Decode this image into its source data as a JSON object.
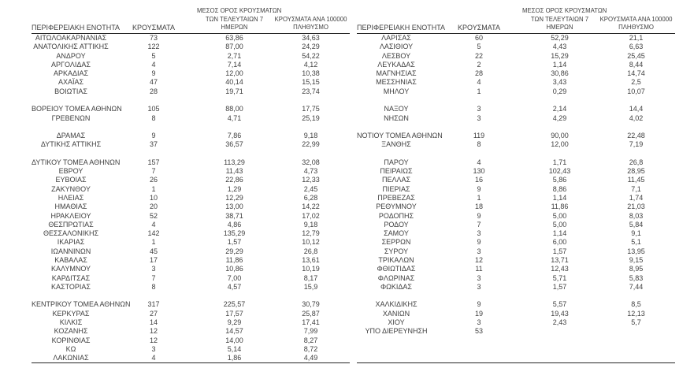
{
  "columns": {
    "region": "ΠΕΡΙΦΕΡΕΙΑΚΗ ΕΝΟΤΗΤΑ",
    "cases": "ΚΡΟΥΣΜΑΤΑ",
    "avg7_lines": [
      "ΜΕΣΟΣ ΟΡΟΣ ΚΡΟΥΣΜΑΤΩΝ",
      "ΤΩΝ ΤΕΛΕΥΤΑΙΩΝ 7",
      "ΗΜΕΡΩΝ"
    ],
    "per100k_lines": [
      "ΚΡΟΥΣΜΑΤΑ ΑΝΑ 100000",
      "ΠΛΗΘΥΣΜΟ"
    ]
  },
  "left_table": {
    "rows": [
      [
        "ΑΙΤΩΛΟΑΚΑΡΝΑΝΙΑΣ",
        "73",
        "63,86",
        "34,63"
      ],
      [
        "ΑΝΑΤΟΛΙΚΗΣ ΑΤΤΙΚΗΣ",
        "122",
        "87,00",
        "24,29"
      ],
      [
        "ΑΝΔΡΟΥ",
        "5",
        "2,71",
        "54,22"
      ],
      [
        "ΑΡΓΟΛΙΔΑΣ",
        "4",
        "7,14",
        "4,12"
      ],
      [
        "ΑΡΚΑΔΙΑΣ",
        "9",
        "12,00",
        "10,38"
      ],
      [
        "ΑΧΑΪΑΣ",
        "47",
        "40,14",
        "15,15"
      ],
      [
        "ΒΟΙΩΤΙΑΣ",
        "28",
        "19,71",
        "23,74"
      ],
      null,
      [
        "ΒΟΡΕΙΟΥ ΤΟΜΕΑ ΑΘΗΝΩΝ",
        "105",
        "88,00",
        "17,75"
      ],
      [
        "ΓΡΕΒΕΝΩΝ",
        "8",
        "4,71",
        "25,19"
      ],
      null,
      [
        "ΔΡΑΜΑΣ",
        "9",
        "7,86",
        "9,18"
      ],
      [
        "ΔΥΤΙΚΗΣ ΑΤΤΙΚΗΣ",
        "37",
        "36,57",
        "22,99"
      ],
      null,
      [
        "ΔΥΤΙΚΟΥ ΤΟΜΕΑ ΑΘΗΝΩΝ",
        "157",
        "113,29",
        "32,08"
      ],
      [
        "ΕΒΡΟΥ",
        "7",
        "11,43",
        "4,73"
      ],
      [
        "ΕΥΒΟΙΑΣ",
        "26",
        "22,86",
        "12,33"
      ],
      [
        "ΖΑΚΥΝΘΟΥ",
        "1",
        "1,29",
        "2,45"
      ],
      [
        "ΗΛΕΙΑΣ",
        "10",
        "12,29",
        "6,28"
      ],
      [
        "ΗΜΑΘΙΑΣ",
        "20",
        "13,00",
        "14,22"
      ],
      [
        "ΗΡΑΚΛΕΙΟΥ",
        "52",
        "38,71",
        "17,02"
      ],
      [
        "ΘΕΣΠΡΩΤΙΑΣ",
        "4",
        "4,86",
        "9,18"
      ],
      [
        "ΘΕΣΣΑΛΟΝΙΚΗΣ",
        "142",
        "135,29",
        "12,79"
      ],
      [
        "ΙΚΑΡΙΑΣ",
        "1",
        "1,57",
        "10,12"
      ],
      [
        "ΙΩΑΝΝΙΝΩΝ",
        "45",
        "29,29",
        "26,8"
      ],
      [
        "ΚΑΒΑΛΑΣ",
        "17",
        "11,86",
        "13,61"
      ],
      [
        "ΚΑΛΥΜΝΟΥ",
        "3",
        "10,86",
        "10,19"
      ],
      [
        "ΚΑΡΔΙΤΣΑΣ",
        "7",
        "7,00",
        "8,17"
      ],
      [
        "ΚΑΣΤΟΡΙΑΣ",
        "8",
        "4,57",
        "15,9"
      ],
      null,
      [
        "ΚΕΝΤΡΙΚΟΥ ΤΟΜΕΑ ΑΘΗΝΩΝ",
        "317",
        "225,57",
        "30,79"
      ],
      [
        "ΚΕΡΚΥΡΑΣ",
        "27",
        "17,57",
        "25,87"
      ],
      [
        "ΚΙΛΚΙΣ",
        "14",
        "9,29",
        "17,41"
      ],
      [
        "ΚΟΖΑΝΗΣ",
        "12",
        "14,57",
        "7,99"
      ],
      [
        "ΚΟΡΙΝΘΙΑΣ",
        "12",
        "14,00",
        "8,27"
      ],
      [
        "ΚΩ",
        "3",
        "5,14",
        "8,72"
      ],
      [
        "ΛΑΚΩΝΙΑΣ",
        "4",
        "1,86",
        "4,49"
      ]
    ]
  },
  "right_table": {
    "rows": [
      [
        "ΛΑΡΙΣΑΣ",
        "60",
        "52,29",
        "21,1"
      ],
      [
        "ΛΑΣΙΘΙΟΥ",
        "5",
        "4,43",
        "6,63"
      ],
      [
        "ΛΕΣΒΟΥ",
        "22",
        "15,29",
        "25,45"
      ],
      [
        "ΛΕΥΚΑΔΑΣ",
        "2",
        "1,14",
        "8,44"
      ],
      [
        "ΜΑΓΝΗΣΙΑΣ",
        "28",
        "30,86",
        "14,74"
      ],
      [
        "ΜΕΣΣΗΝΙΑΣ",
        "4",
        "3,43",
        "2,5"
      ],
      [
        "ΜΗΛΟΥ",
        "1",
        "0,29",
        "10,07"
      ],
      null,
      [
        "ΝΑΞΟΥ",
        "3",
        "2,14",
        "14,4"
      ],
      [
        "ΝΗΣΩΝ",
        "3",
        "4,29",
        "4,02"
      ],
      null,
      [
        "ΝΟΤΙΟΥ ΤΟΜΕΑ ΑΘΗΝΩΝ",
        "119",
        "90,00",
        "22,48"
      ],
      [
        "ΞΑΝΘΗΣ",
        "8",
        "12,00",
        "7,19"
      ],
      null,
      [
        "ΠΑΡΟΥ",
        "4",
        "1,71",
        "26,8"
      ],
      [
        "ΠΕΙΡΑΙΩΣ",
        "130",
        "102,43",
        "28,95"
      ],
      [
        "ΠΕΛΛΑΣ",
        "16",
        "5,86",
        "11,45"
      ],
      [
        "ΠΙΕΡΙΑΣ",
        "9",
        "8,86",
        "7,1"
      ],
      [
        "ΠΡΕΒΕΖΑΣ",
        "1",
        "1,14",
        "1,74"
      ],
      [
        "ΡΕΘΥΜΝΟΥ",
        "18",
        "11,86",
        "21,03"
      ],
      [
        "ΡΟΔΟΠΗΣ",
        "9",
        "5,00",
        "8,03"
      ],
      [
        "ΡΟΔΟΥ",
        "7",
        "5,00",
        "5,84"
      ],
      [
        "ΣΑΜΟΥ",
        "3",
        "1,14",
        "9,1"
      ],
      [
        "ΣΕΡΡΩΝ",
        "9",
        "6,00",
        "5,1"
      ],
      [
        "ΣΥΡΟΥ",
        "3",
        "1,57",
        "13,95"
      ],
      [
        "ΤΡΙΚΑΛΩΝ",
        "12",
        "13,71",
        "9,15"
      ],
      [
        "ΦΘΙΩΤΙΔΑΣ",
        "11",
        "12,43",
        "8,95"
      ],
      [
        "ΦΛΩΡΙΝΑΣ",
        "3",
        "5,71",
        "5,83"
      ],
      [
        "ΦΩΚΙΔΑΣ",
        "3",
        "1,57",
        "7,44"
      ],
      null,
      [
        "ΧΑΛΚΙΔΙΚΗΣ",
        "9",
        "5,57",
        "8,5"
      ],
      [
        "ΧΑΝΙΩΝ",
        "19",
        "19,43",
        "12,13"
      ],
      [
        "ΧΙΟΥ",
        "3",
        "2,43",
        "5,7"
      ],
      [
        "ΥΠΟ ΔΙΕΡΕΥΝΗΣΗ",
        "53",
        "",
        ""
      ],
      null,
      null,
      null
    ]
  }
}
